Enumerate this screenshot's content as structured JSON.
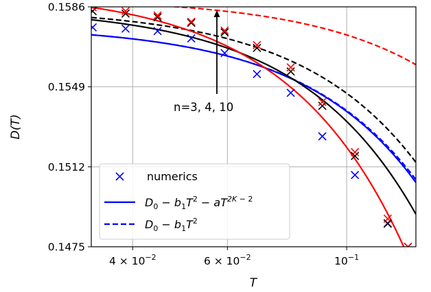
{
  "chart_data": {
    "type": "line",
    "xscale": "log",
    "xlim": [
      0.0335,
      0.1345
    ],
    "ylim": [
      0.1475,
      0.1586
    ],
    "xlabel": "T",
    "ylabel": "D(T)",
    "yticks": [
      {
        "v": 0.1475,
        "label": "0.1475"
      },
      {
        "v": 0.1512,
        "label": "0.1512"
      },
      {
        "v": 0.1549,
        "label": "0.1549"
      },
      {
        "v": 0.1586,
        "label": "0.1586"
      }
    ],
    "xticks": [
      {
        "v": 0.04,
        "label": "4 × 10",
        "exp": "−2"
      },
      {
        "v": 0.06,
        "label": "6 × 10",
        "exp": "−2"
      },
      {
        "v": 0.1,
        "label": "10",
        "exp": "−1"
      }
    ],
    "grid": true,
    "annotation": "n=3, 4, 10",
    "legend": {
      "placement": "lower-left",
      "entries": [
        {
          "text": "numerics",
          "style": "marker"
        },
        {
          "text": "D₀ − b₁T² − aT^{2K−2}",
          "style": "solid"
        },
        {
          "text": "D₀ − b₁T²",
          "style": "dashed"
        }
      ]
    },
    "colors": {
      "n3": "#0000ff",
      "n4": "#000000",
      "n10": "#ff0000"
    },
    "series": [
      {
        "color": "#0000ff",
        "solid": {
          "D0": 0.15775,
          "b1": 0.395,
          "a": 0.4,
          "k": 3
        },
        "dashed": {
          "D0": 0.15775,
          "b1": 0.395
        },
        "markers": {
          "x": [
            0.0337,
            0.0388,
            0.0445,
            0.0514,
            0.0593,
            0.0681,
            0.0787,
            0.0901,
            0.1036,
            0.1192,
            0.13
          ],
          "y": [
            0.15765,
            0.15759,
            0.15748,
            0.15714,
            0.15646,
            0.15549,
            0.15462,
            0.15261,
            0.15082,
            0.14859,
            0.1475
          ]
        }
      },
      {
        "color": "#000000",
        "solid": {
          "D0": 0.1586,
          "b1": 0.53,
          "a": 1.33,
          "k": 4
        },
        "dashed": {
          "D0": 0.15855,
          "b1": 0.395
        },
        "markers": {
          "x": [
            0.0337,
            0.0388,
            0.0445,
            0.0514,
            0.0593,
            0.0681,
            0.0787,
            0.0901,
            0.1036,
            0.1192,
            0.13
          ],
          "y": [
            0.1584,
            0.15829,
            0.15812,
            0.15786,
            0.15742,
            0.1567,
            0.15561,
            0.15402,
            0.1517,
            0.14857,
            0.147
          ]
        }
      },
      {
        "color": "#ff0000",
        "solid": {
          "D0": 0.1594,
          "b1": 0.73,
          "a": 145,
          "k": 10
        },
        "dashed": {
          "D0": 0.159,
          "b1": 0.17
        },
        "markers": {
          "x": [
            0.0337,
            0.0388,
            0.0445,
            0.0514,
            0.0593,
            0.0681,
            0.0787,
            0.0901,
            0.1036,
            0.1192,
            0.13
          ],
          "y": [
            0.15858,
            0.1584,
            0.1582,
            0.15791,
            0.1575,
            0.15683,
            0.1558,
            0.1542,
            0.15188,
            0.1488,
            0.1475
          ]
        }
      }
    ]
  }
}
